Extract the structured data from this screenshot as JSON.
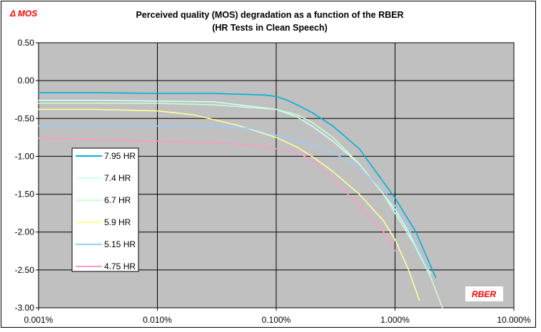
{
  "chart_data": {
    "type": "line",
    "title": "Perceived quality (MOS) degradation as a function of the RBER",
    "subtitle": "(HR Tests in Clean Speech)",
    "ylabel": "Δ  MOS",
    "xlabel": "RBER",
    "x_scale": "log",
    "xlim": [
      0.001,
      10
    ],
    "ylim": [
      -3.0,
      0.5
    ],
    "x_tick_values": [
      0.001,
      0.01,
      0.1,
      1,
      10
    ],
    "x_tick_labels": [
      "0.001%",
      "0.010%",
      "0.100%",
      "1.000%",
      "10.000%"
    ],
    "y_tick_values": [
      0.5,
      0.0,
      -0.5,
      -1.0,
      -1.5,
      -2.0,
      -2.5,
      -3.0
    ],
    "y_tick_labels": [
      "0.50",
      "0.00",
      "-0.50",
      "-1.00",
      "-1.50",
      "-2.00",
      "-2.50",
      "-3.00"
    ],
    "grid": true,
    "plot_background": "#c0c0c0",
    "legend_position": "left",
    "series": [
      {
        "name": "7.95 HR",
        "color": "#00b0d8",
        "x": [
          0.001,
          0.003,
          0.01,
          0.03,
          0.08,
          0.1,
          0.12,
          0.15,
          0.2,
          0.3,
          0.5,
          1.0,
          1.5,
          2.2
        ],
        "y": [
          -0.16,
          -0.16,
          -0.17,
          -0.17,
          -0.19,
          -0.21,
          -0.25,
          -0.32,
          -0.42,
          -0.6,
          -0.9,
          -1.55,
          -2.0,
          -2.6
        ]
      },
      {
        "name": "7.4 HR",
        "color": "#ccffff",
        "x": [
          0.001,
          0.003,
          0.01,
          0.03,
          0.1,
          0.15,
          0.2,
          0.3,
          0.5,
          0.8,
          1.0,
          1.3,
          1.6,
          2.0
        ],
        "y": [
          -0.26,
          -0.26,
          -0.27,
          -0.28,
          -0.38,
          -0.48,
          -0.6,
          -0.8,
          -1.1,
          -1.5,
          -1.7,
          -2.0,
          -2.3,
          -2.55
        ]
      },
      {
        "name": "6.7 HR",
        "color": "#ccffcc",
        "x": [
          0.001,
          0.003,
          0.01,
          0.03,
          0.1,
          0.15,
          0.2,
          0.3,
          0.5,
          0.8,
          1.0,
          1.5,
          2.0,
          2.5
        ],
        "y": [
          -0.3,
          -0.3,
          -0.3,
          -0.32,
          -0.38,
          -0.45,
          -0.55,
          -0.75,
          -1.1,
          -1.5,
          -1.75,
          -2.2,
          -2.6,
          -3.0
        ]
      },
      {
        "name": "5.9 HR",
        "color": "#ffff99",
        "x": [
          0.001,
          0.003,
          0.01,
          0.02,
          0.05,
          0.1,
          0.15,
          0.2,
          0.3,
          0.5,
          0.8,
          1.0,
          1.3,
          1.6
        ],
        "y": [
          -0.38,
          -0.38,
          -0.4,
          -0.45,
          -0.6,
          -0.75,
          -0.88,
          -1.0,
          -1.2,
          -1.5,
          -1.85,
          -2.1,
          -2.5,
          -2.9
        ]
      },
      {
        "name": "5.15 HR",
        "color": "#99ccff",
        "x": [
          0.001,
          0.003,
          0.01,
          0.03,
          0.06,
          0.1,
          0.2,
          0.3,
          0.5,
          0.8,
          1.0,
          1.3,
          1.6,
          1.9
        ],
        "y": [
          -0.6,
          -0.6,
          -0.6,
          -0.6,
          -0.63,
          -0.72,
          -0.85,
          -0.95,
          -1.15,
          -1.45,
          -1.65,
          -1.95,
          -2.25,
          -2.5
        ]
      },
      {
        "name": "4.75 HR",
        "color": "#ff99cc",
        "x": [
          0.001,
          0.003,
          0.01,
          0.03,
          0.06,
          0.1,
          0.15,
          0.2,
          0.3,
          0.5,
          0.8,
          1.0
        ],
        "y": [
          -0.76,
          -0.78,
          -0.8,
          -0.82,
          -0.85,
          -0.9,
          -0.95,
          -1.05,
          -1.3,
          -1.65,
          -2.0,
          -2.25
        ]
      }
    ]
  }
}
